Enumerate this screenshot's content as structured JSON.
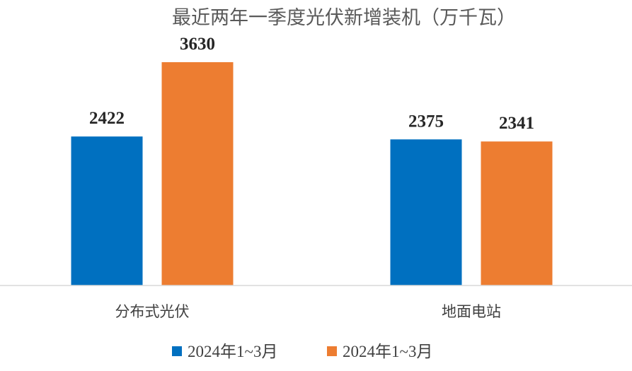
{
  "chart_data": {
    "type": "bar",
    "title": "最近两年一季度光伏新增装机（万千瓦）",
    "categories": [
      "分布式光伏",
      "地面电站"
    ],
    "series": [
      {
        "name": "2024年1~3月",
        "values": [
          2422,
          2375
        ],
        "color": "#0070C0"
      },
      {
        "name": "2024年1~3月",
        "values": [
          3630,
          2341
        ],
        "color": "#ED7D31"
      }
    ],
    "xlabel": "",
    "ylabel": "",
    "ylim": [
      0,
      4000
    ],
    "grid": false,
    "legend": "bottom-center"
  }
}
